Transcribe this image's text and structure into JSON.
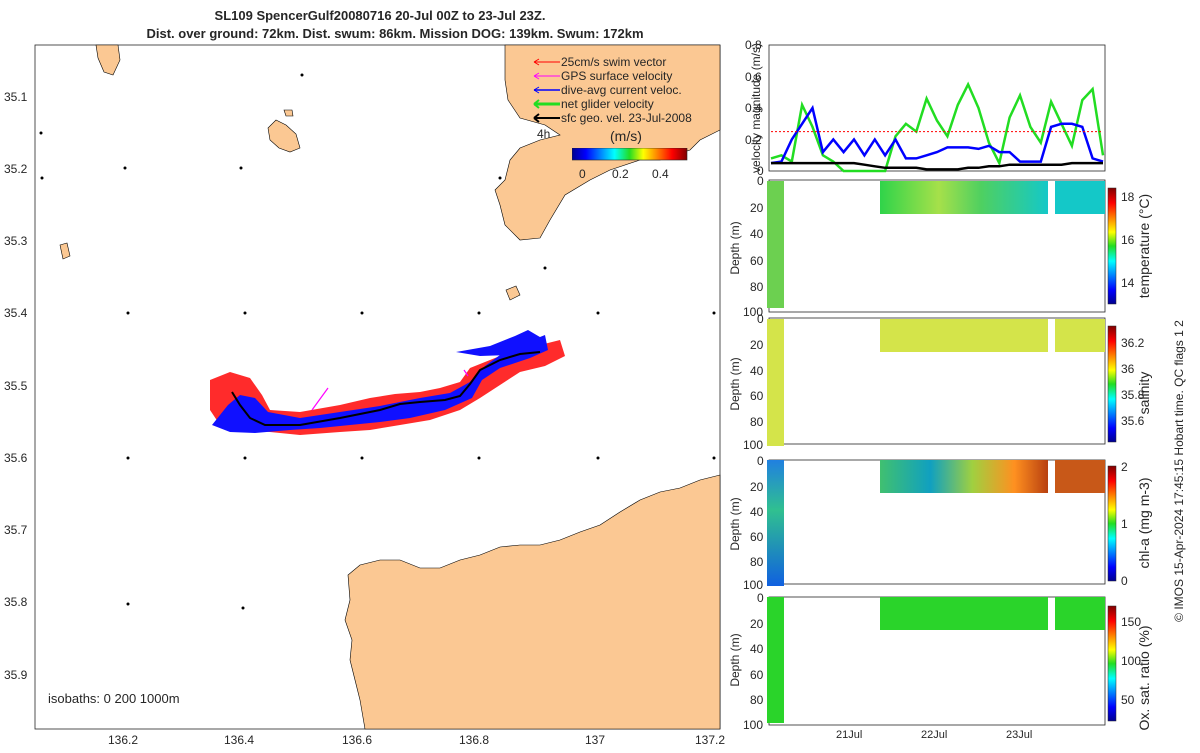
{
  "header": {
    "line1": "SL109 SpencerGulf20080716 20-Jul 00Z to 23-Jul 23Z.",
    "line2": "Dist. over ground: 72km. Dist. swum: 86km. Mission DOG: 139km. Swum: 172km"
  },
  "colors": {
    "land": "#fbc893",
    "swim": "#ff0000",
    "gps": "#ff00ff",
    "current": "#0000ff",
    "net": "#22dd22",
    "sfc": "#000000",
    "sal_fill": "#d4e44a",
    "oxy_fill": "#2ad42a",
    "temp_fill": "#7cd65a"
  },
  "legend": {
    "items": [
      {
        "label": "25cm/s swim vector",
        "color": "#ff0000"
      },
      {
        "label": "GPS surface velocity",
        "color": "#ff00ff"
      },
      {
        "label": "dive-avg current veloc.",
        "color": "#0000ff"
      },
      {
        "label": "net glider velocity",
        "color": "#22dd22"
      },
      {
        "label": "sfc geo. vel. 23-Jul-2008",
        "color": "#000000"
      }
    ],
    "tag": "4h",
    "cbar_title": "(m/s)",
    "cbar_ticks": [
      "0",
      "0.2",
      "0.4"
    ]
  },
  "map": {
    "lat_ticks": [
      "35.1",
      "35.2",
      "35.3",
      "35.4",
      "35.5",
      "35.6",
      "35.7",
      "35.8",
      "35.9"
    ],
    "lon_ticks": [
      "136.2",
      "136.4",
      "136.6",
      "136.8",
      "137",
      "137.2"
    ],
    "isobaths": "isobaths: 0   200  1000m"
  },
  "chart_data": [
    {
      "type": "line",
      "title": "",
      "ylabel": "velocity magnitude (m/s)",
      "ylim": [
        0,
        0.8
      ],
      "yticks": [
        "0",
        "0.2",
        "0.4",
        "0.6",
        "0.8"
      ],
      "x": [
        0,
        3,
        6,
        9,
        12,
        15,
        18,
        21,
        24,
        27,
        30,
        33,
        36,
        39,
        42,
        45,
        48,
        51,
        54,
        57,
        60,
        63,
        66,
        69,
        72,
        75,
        78,
        81,
        84,
        87,
        90,
        93,
        96
      ],
      "series": [
        {
          "name": "net glider velocity",
          "values": [
            0.08,
            0.1,
            0.06,
            0.42,
            0.28,
            0.1,
            0.06,
            0.0,
            0.0,
            0.0,
            0.0,
            0.0,
            0.22,
            0.3,
            0.25,
            0.46,
            0.32,
            0.22,
            0.42,
            0.55,
            0.4,
            0.18,
            0.05,
            0.34,
            0.48,
            0.28,
            0.18,
            0.44,
            0.3,
            0.16,
            0.45,
            0.52,
            0.1
          ]
        },
        {
          "name": "dive-avg current veloc.",
          "values": [
            0.05,
            0.06,
            0.2,
            0.3,
            0.4,
            0.12,
            0.2,
            0.12,
            0.2,
            0.1,
            0.2,
            0.1,
            0.2,
            0.08,
            0.08,
            0.1,
            0.12,
            0.15,
            0.15,
            0.15,
            0.14,
            0.16,
            0.12,
            0.12,
            0.06,
            0.06,
            0.06,
            0.28,
            0.3,
            0.3,
            0.28,
            0.08,
            0.06
          ]
        },
        {
          "name": "sfc geo. vel.",
          "values": [
            0.05,
            0.05,
            0.05,
            0.05,
            0.05,
            0.05,
            0.05,
            0.05,
            0.05,
            0.04,
            0.03,
            0.02,
            0.02,
            0.02,
            0.02,
            0.01,
            0.01,
            0.01,
            0.01,
            0.02,
            0.02,
            0.03,
            0.03,
            0.04,
            0.04,
            0.04,
            0.04,
            0.04,
            0.04,
            0.05,
            0.05,
            0.05,
            0.05
          ]
        },
        {
          "name": "swim speed",
          "values": [
            0.25,
            0.25,
            0.25,
            0.25,
            0.25,
            0.25,
            0.25,
            0.25,
            0.25,
            0.25,
            0.25,
            0.25,
            0.25,
            0.25,
            0.25,
            0.25,
            0.25,
            0.25,
            0.25,
            0.25,
            0.25,
            0.25,
            0.25,
            0.25,
            0.25,
            0.25,
            0.25,
            0.25,
            0.25,
            0.25,
            0.25,
            0.25,
            0.25
          ]
        }
      ]
    },
    {
      "type": "heatmap",
      "ylabel": "Depth (m)",
      "clabel": "temperature (°C)",
      "ylim": [
        0,
        100
      ],
      "yticks": [
        "0",
        "20",
        "40",
        "60",
        "80",
        "100"
      ],
      "cticks": [
        "14",
        "16",
        "18"
      ]
    },
    {
      "type": "heatmap",
      "ylabel": "Depth (m)",
      "clabel": "salinity",
      "ylim": [
        0,
        100
      ],
      "yticks": [
        "0",
        "20",
        "40",
        "60",
        "80",
        "100"
      ],
      "cticks": [
        "35.6",
        "35.8",
        "36",
        "36.2"
      ]
    },
    {
      "type": "heatmap",
      "ylabel": "Depth (m)",
      "clabel": "chl-a (mg m-3)",
      "ylim": [
        0,
        100
      ],
      "yticks": [
        "0",
        "20",
        "40",
        "60",
        "80",
        "100"
      ],
      "cticks": [
        "0",
        "1",
        "2"
      ]
    },
    {
      "type": "heatmap",
      "ylabel": "Depth (m)",
      "clabel": "Ox. sat. ratio (%)",
      "ylim": [
        0,
        100
      ],
      "yticks": [
        "0",
        "20",
        "40",
        "60",
        "80",
        "100"
      ],
      "cticks": [
        "50",
        "100",
        "150"
      ],
      "xticks": [
        "21Jul",
        "22Jul",
        "23Jul"
      ]
    }
  ],
  "footer": {
    "credit": "© IMOS 15-Apr-2024 17:45:15 Hobart time. QC flags 1  2"
  }
}
